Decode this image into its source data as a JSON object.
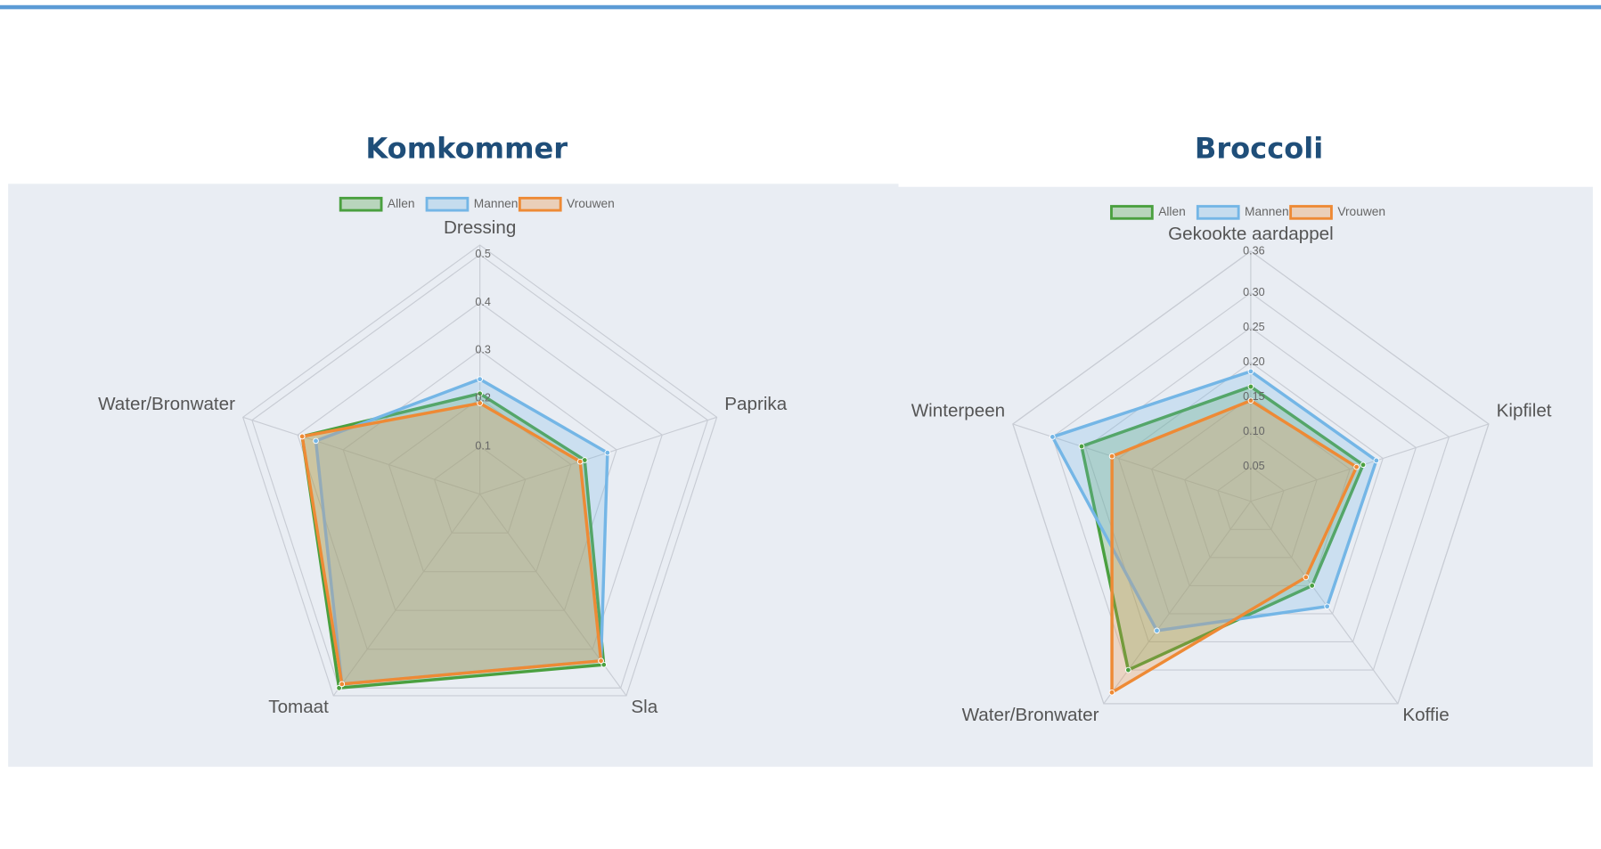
{
  "chart_data": [
    {
      "type": "radar",
      "title": "Komkommer",
      "categories": [
        "Dressing",
        "Paprika",
        "Sla",
        "Tomaat",
        "Water/Bronwater"
      ],
      "series": [
        {
          "name": "Allen",
          "color": "#4aa03f",
          "values": [
            0.21,
            0.23,
            0.44,
            0.5,
            0.39
          ]
        },
        {
          "name": "Mannen",
          "color": "#74b6e6",
          "values": [
            0.24,
            0.28,
            0.43,
            0.49,
            0.36
          ]
        },
        {
          "name": "Vrouwen",
          "color": "#ee8a35",
          "values": [
            0.19,
            0.22,
            0.43,
            0.49,
            0.39
          ]
        }
      ],
      "rlim": [
        0,
        0.52
      ],
      "rticks": [
        0.1,
        0.2,
        0.3,
        0.4,
        0.5
      ],
      "grid": true
    },
    {
      "type": "radar",
      "title": "Broccoli",
      "categories": [
        "Gekookte aardappel",
        "Kipfilet",
        "Koffie",
        "Water/Bronwater",
        "Winterpeen"
      ],
      "series": [
        {
          "name": "Allen",
          "color": "#4aa03f",
          "values": [
            0.165,
            0.17,
            0.15,
            0.3,
            0.256
          ]
        },
        {
          "name": "Mannen",
          "color": "#74b6e6",
          "values": [
            0.187,
            0.19,
            0.187,
            0.23,
            0.3
          ]
        },
        {
          "name": "Vrouwen",
          "color": "#ee8a35",
          "values": [
            0.145,
            0.16,
            0.135,
            0.34,
            0.21
          ]
        }
      ],
      "rlim": [
        0,
        0.36
      ],
      "rticks": [
        0.05,
        {
          "value": 0.1,
          "label": "0.10"
        },
        0.15,
        {
          "value": 0.2,
          "label": "0.20"
        },
        0.25,
        {
          "value": 0.3,
          "label": "0.30"
        },
        0.36
      ],
      "grid": true
    }
  ]
}
